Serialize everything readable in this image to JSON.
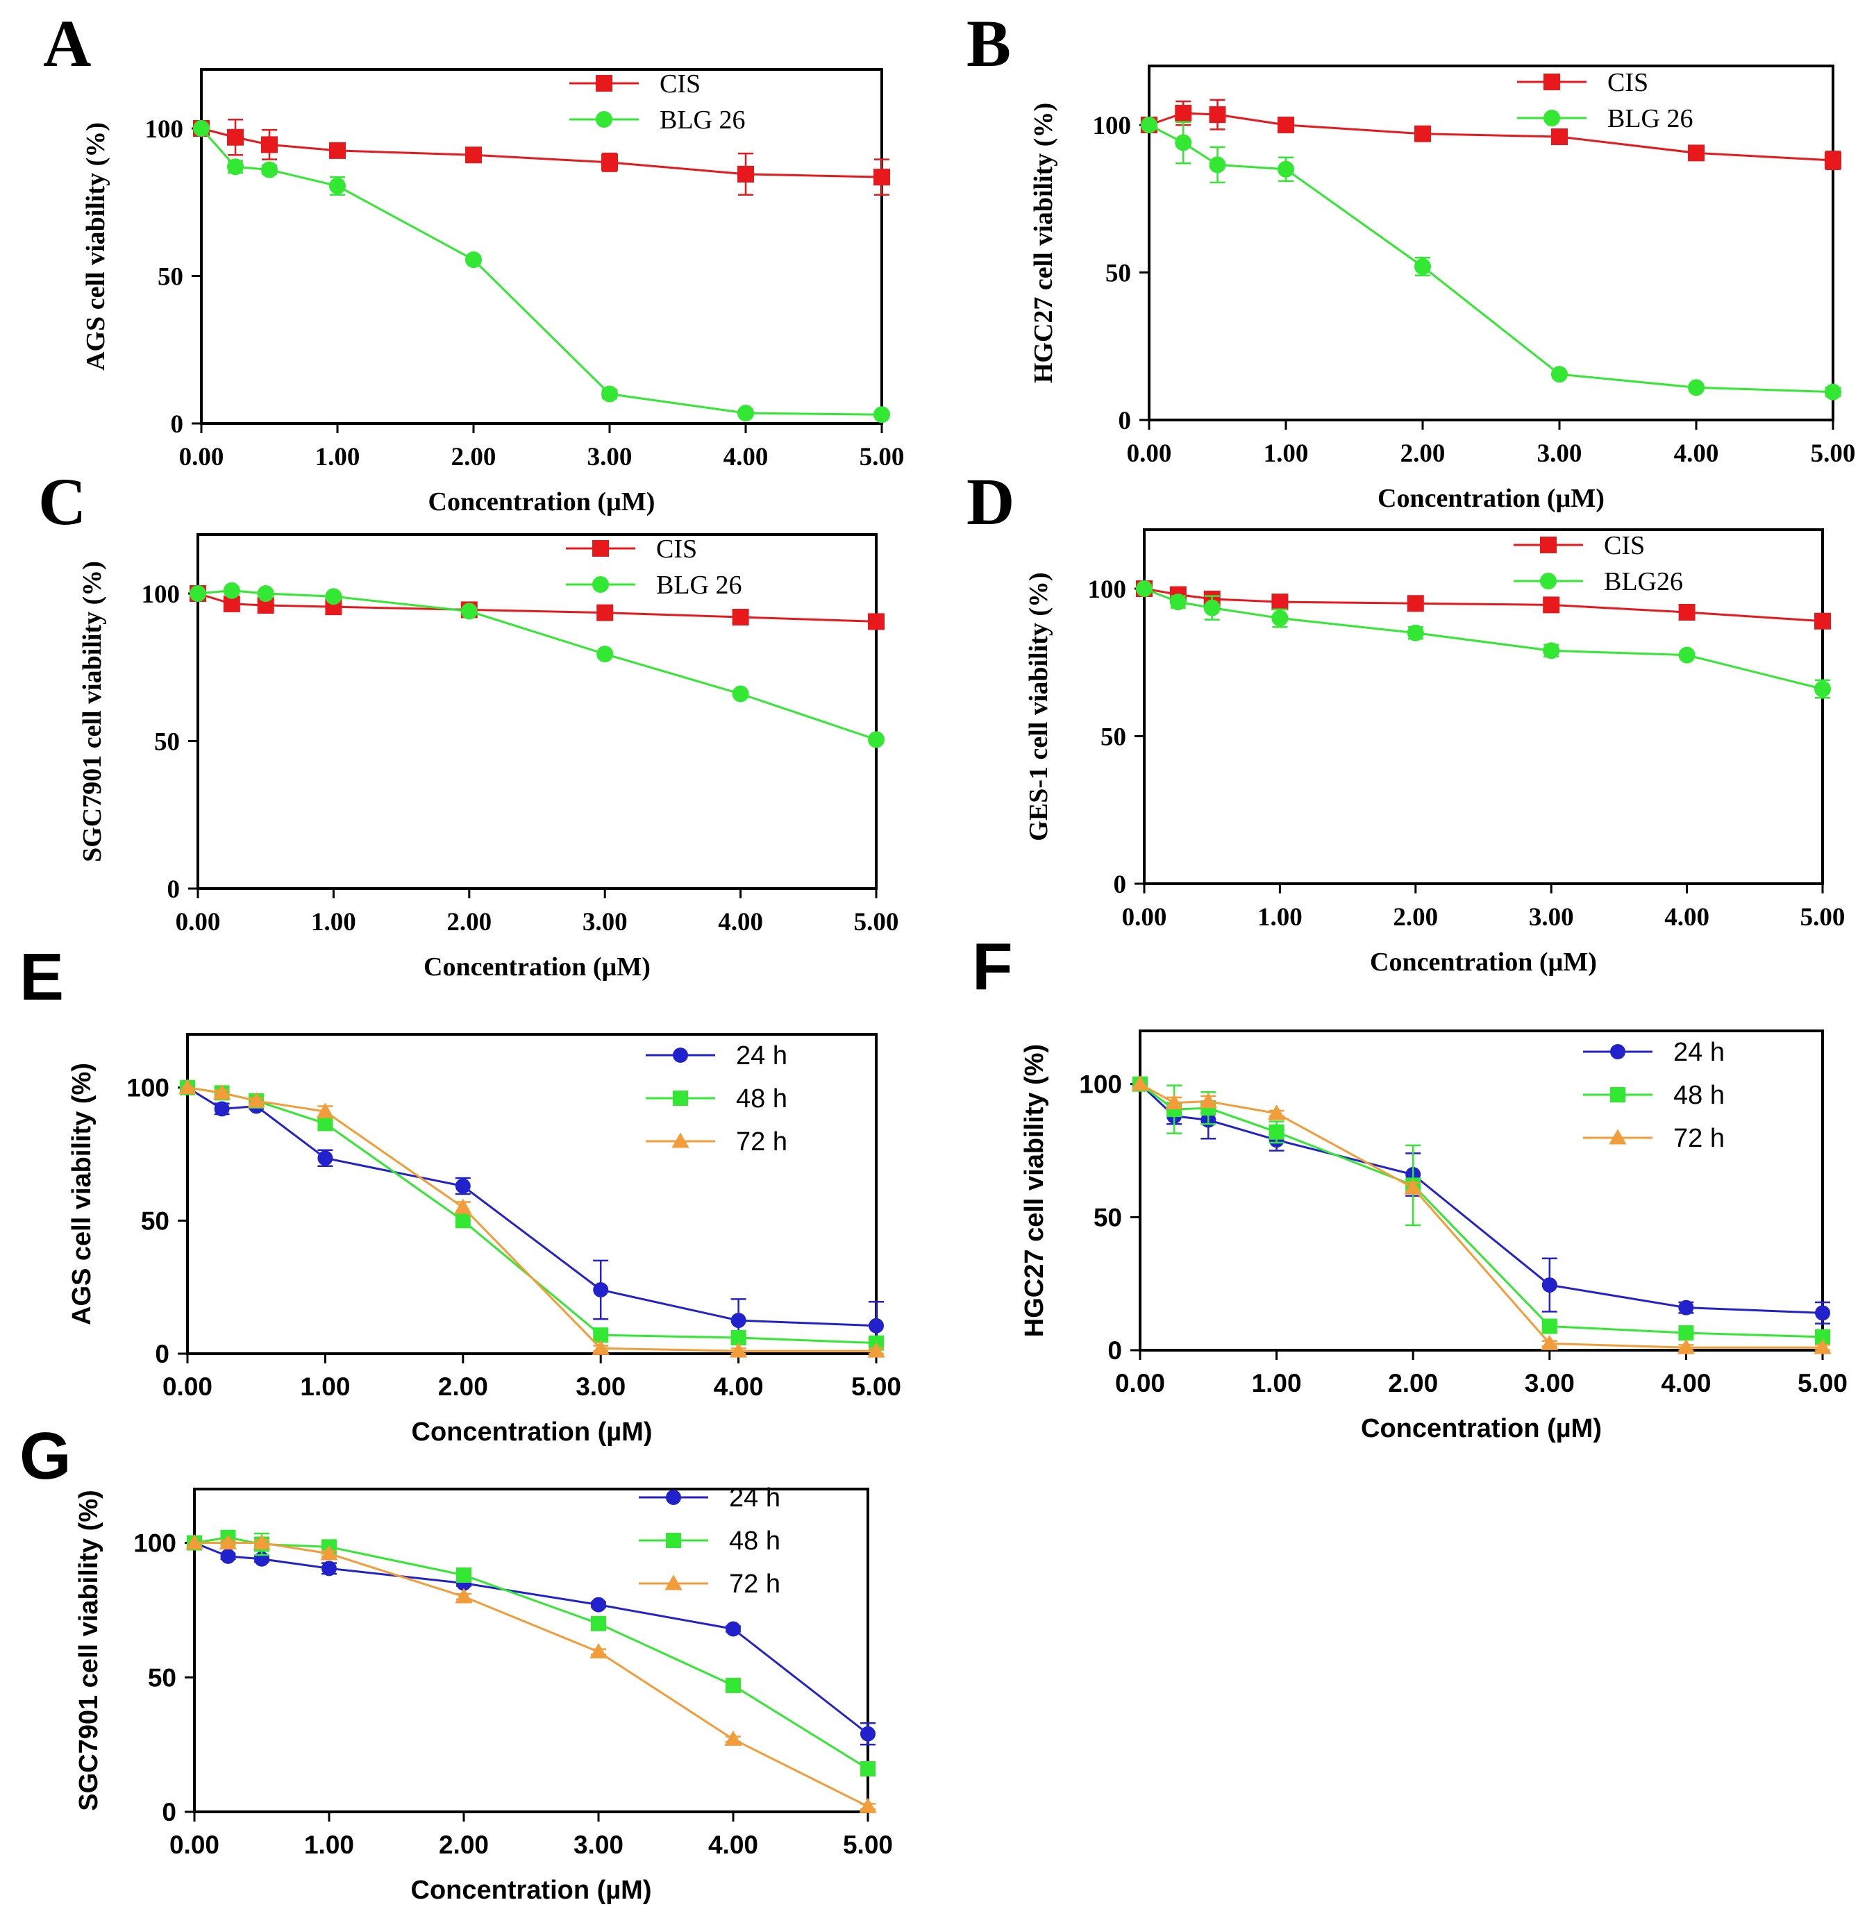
{
  "figure": {
    "x_ticks": [
      "0.00",
      "1.00",
      "2.00",
      "3.00",
      "4.00",
      "5.00"
    ],
    "y_ticks": [
      "0",
      "50",
      "100"
    ],
    "xlabel": "Concentration (µM)"
  },
  "chart_data": [
    {
      "letter": "A",
      "type": "line",
      "style": "serif",
      "ylabel": "AGS cell viability (%)",
      "xlabel": "Concentration (µM)",
      "xlim": [
        0,
        5
      ],
      "ylim": [
        0,
        120
      ],
      "x": [
        0,
        0.25,
        0.5,
        1,
        2,
        3,
        4,
        5
      ],
      "series": [
        {
          "name": "CIS",
          "color": "#e8191c",
          "marker": "square",
          "values": [
            100,
            97,
            94.5,
            92.5,
            91,
            88.5,
            84.5,
            83.5
          ],
          "errors": [
            0,
            6,
            5,
            2,
            1.5,
            3,
            7,
            6
          ]
        },
        {
          "name": "BLG 26",
          "color": "#33e833",
          "marker": "circle",
          "values": [
            100,
            87,
            86,
            80.5,
            55.5,
            10,
            3.5,
            3
          ],
          "errors": [
            0,
            2,
            1.5,
            3,
            1,
            1.5,
            1,
            0.5
          ]
        }
      ]
    },
    {
      "letter": "B",
      "type": "line",
      "style": "serif",
      "ylabel": "HGC27 cell viability (%)",
      "xlabel": "Concentration (µM)",
      "xlim": [
        0,
        5
      ],
      "ylim": [
        0,
        120
      ],
      "x": [
        0,
        0.25,
        0.5,
        1,
        2,
        3,
        4,
        5
      ],
      "series": [
        {
          "name": "CIS",
          "color": "#e8191c",
          "marker": "square",
          "values": [
            100,
            104,
            103.5,
            100,
            97,
            96,
            90.5,
            88
          ],
          "errors": [
            0,
            4,
            5,
            1,
            1,
            1,
            1,
            3
          ]
        },
        {
          "name": "BLG 26",
          "color": "#33e833",
          "marker": "circle",
          "values": [
            100,
            94,
            86.5,
            85,
            52,
            15.5,
            11,
            9.5
          ],
          "errors": [
            0,
            7,
            6,
            4,
            3,
            1,
            1,
            1.5
          ]
        }
      ]
    },
    {
      "letter": "C",
      "type": "line",
      "style": "serif",
      "ylabel": "SGC7901 cell viability (%)",
      "xlabel": "Concentration (µM)",
      "xlim": [
        0,
        5
      ],
      "ylim": [
        0,
        120
      ],
      "x": [
        0,
        0.25,
        0.5,
        1,
        2,
        3,
        4,
        5
      ],
      "series": [
        {
          "name": "CIS",
          "color": "#e8191c",
          "marker": "square",
          "values": [
            100,
            96.5,
            96,
            95.5,
            94.5,
            93.5,
            92,
            90.5
          ],
          "errors": [
            0,
            1,
            1,
            1,
            1,
            1,
            1,
            1
          ]
        },
        {
          "name": "BLG 26",
          "color": "#33e833",
          "marker": "circle",
          "values": [
            100,
            101,
            100,
            99,
            94,
            79.5,
            66,
            50.5
          ],
          "errors": [
            0,
            1,
            1,
            1,
            1,
            1,
            1,
            1
          ]
        }
      ]
    },
    {
      "letter": "D",
      "type": "line",
      "style": "serif",
      "ylabel": "GES-1 cell viability (%)",
      "xlabel": "Concentration (µM)",
      "xlim": [
        0,
        5
      ],
      "ylim": [
        0,
        120
      ],
      "x": [
        0,
        0.25,
        0.5,
        1,
        2,
        3,
        4,
        5
      ],
      "series": [
        {
          "name": "CIS",
          "color": "#e8191c",
          "marker": "square",
          "values": [
            100,
            98,
            96.5,
            95.5,
            95,
            94.5,
            92,
            89
          ],
          "errors": [
            0,
            1,
            1,
            1,
            1,
            1,
            1,
            1
          ]
        },
        {
          "name": "BLG26",
          "color": "#33e833",
          "marker": "circle",
          "values": [
            100,
            95.5,
            93.5,
            90,
            85,
            79,
            77.5,
            66
          ],
          "errors": [
            0,
            2,
            4,
            3,
            2,
            2,
            1,
            3
          ]
        }
      ]
    },
    {
      "letter": "E",
      "type": "line",
      "style": "sans",
      "ylabel": "AGS cell viability (%)",
      "xlabel": "Concentration (µM)",
      "xlim": [
        0,
        5
      ],
      "ylim": [
        0,
        120
      ],
      "x": [
        0,
        0.25,
        0.5,
        1,
        2,
        3,
        4,
        5
      ],
      "series": [
        {
          "name": "24 h",
          "color": "#2222cc",
          "marker": "circle",
          "values": [
            100,
            92,
            93,
            73.5,
            63,
            24,
            12.5,
            10.5
          ],
          "errors": [
            0,
            2,
            1,
            3,
            3,
            11,
            8,
            9
          ]
        },
        {
          "name": "48 h",
          "color": "#33e833",
          "marker": "square",
          "values": [
            100,
            98,
            95,
            86.5,
            50,
            7,
            6,
            4
          ],
          "errors": [
            0,
            1,
            1,
            2,
            2,
            2,
            1,
            1
          ]
        },
        {
          "name": "72 h",
          "color": "#f39c3a",
          "marker": "triangle",
          "values": [
            100,
            98,
            95,
            91,
            55,
            2,
            1,
            1
          ],
          "errors": [
            0,
            1,
            1,
            2,
            2,
            1,
            1,
            1
          ]
        }
      ]
    },
    {
      "letter": "F",
      "type": "line",
      "style": "sans",
      "ylabel": "HGC27 cell viability (%)",
      "xlabel": "Concentration (µM)",
      "xlim": [
        0,
        5
      ],
      "ylim": [
        0,
        120
      ],
      "x": [
        0,
        0.25,
        0.5,
        1,
        2,
        3,
        4,
        5
      ],
      "series": [
        {
          "name": "24 h",
          "color": "#2222cc",
          "marker": "circle",
          "values": [
            100,
            88,
            86.5,
            79,
            66,
            24.5,
            16,
            14
          ],
          "errors": [
            0,
            3,
            7,
            4,
            8,
            10,
            2,
            4
          ]
        },
        {
          "name": "48 h",
          "color": "#33e833",
          "marker": "square",
          "values": [
            100,
            90.5,
            91,
            82,
            62,
            9,
            6.5,
            5
          ],
          "errors": [
            0,
            9,
            6,
            4,
            15,
            2,
            1,
            1
          ]
        },
        {
          "name": "72 h",
          "color": "#f39c3a",
          "marker": "triangle",
          "values": [
            100,
            93,
            93.5,
            89,
            61,
            2.5,
            1,
            1
          ],
          "errors": [
            0,
            2,
            2,
            1,
            2,
            1,
            1,
            1
          ]
        }
      ]
    },
    {
      "letter": "G",
      "type": "line",
      "style": "sans",
      "ylabel": "SGC7901 cell viability (%)",
      "xlabel": "Concentration (µM)",
      "xlim": [
        0,
        5
      ],
      "ylim": [
        0,
        120
      ],
      "x": [
        0,
        0.25,
        0.5,
        1,
        2,
        3,
        4,
        5
      ],
      "series": [
        {
          "name": "24 h",
          "color": "#2222cc",
          "marker": "circle",
          "values": [
            100,
            95,
            94,
            90.5,
            85,
            77,
            68,
            29
          ],
          "errors": [
            0,
            1,
            1,
            2,
            1,
            1,
            1,
            4
          ]
        },
        {
          "name": "48 h",
          "color": "#33e833",
          "marker": "square",
          "values": [
            100,
            102,
            99.5,
            98.5,
            88,
            70,
            47,
            16
          ],
          "errors": [
            0,
            1,
            4,
            1,
            1,
            1,
            1,
            1
          ]
        },
        {
          "name": "72 h",
          "color": "#f39c3a",
          "marker": "triangle",
          "values": [
            100,
            100,
            100,
            96,
            80,
            59.5,
            27,
            2
          ],
          "errors": [
            0,
            1,
            1,
            1,
            1,
            1,
            1,
            1
          ]
        }
      ]
    }
  ]
}
